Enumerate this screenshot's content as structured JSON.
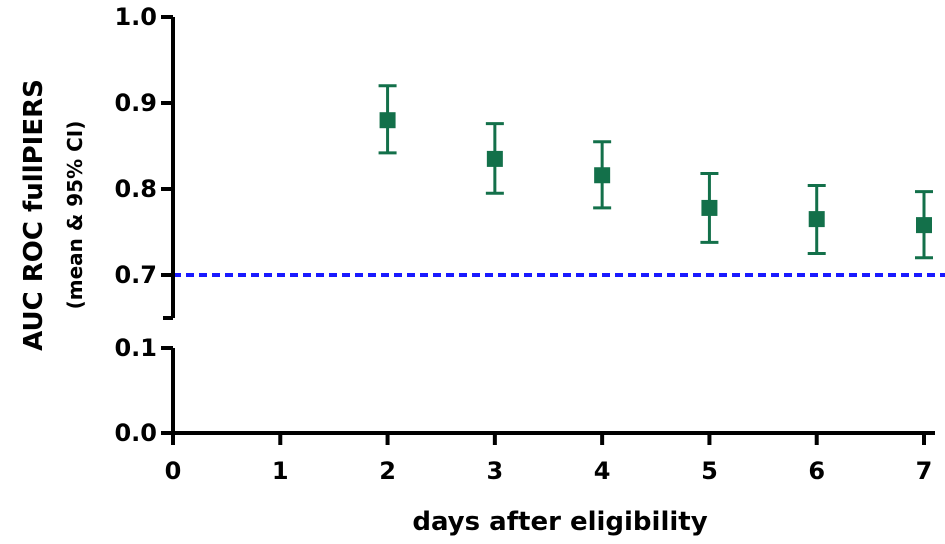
{
  "chart_data": {
    "type": "scatter",
    "xlabel": "days after eligibility",
    "ylabel": "AUC ROC fullPIERS",
    "ylabel_sub": "(mean & 95% CI)",
    "x_ticks": [
      "0",
      "1",
      "2",
      "3",
      "4",
      "5",
      "6",
      "7"
    ],
    "y_ticks_lower": [
      "0.0",
      "0.1"
    ],
    "y_ticks_upper": [
      "0.7",
      "0.8",
      "0.9",
      "1.0"
    ],
    "xlim": [
      0,
      7
    ],
    "ylim_lower": [
      0.0,
      0.1
    ],
    "ylim_upper": [
      0.7,
      1.0
    ],
    "axis_break": true,
    "reference_line": {
      "y": 0.7,
      "color": "#1a1aff",
      "style": "dashed"
    },
    "marker_color": "#13704a",
    "points": [
      {
        "x": 2,
        "y": 0.88,
        "lo": 0.842,
        "hi": 0.92
      },
      {
        "x": 3,
        "y": 0.835,
        "lo": 0.795,
        "hi": 0.876
      },
      {
        "x": 4,
        "y": 0.816,
        "lo": 0.778,
        "hi": 0.855
      },
      {
        "x": 5,
        "y": 0.778,
        "lo": 0.738,
        "hi": 0.818
      },
      {
        "x": 6,
        "y": 0.765,
        "lo": 0.725,
        "hi": 0.804
      },
      {
        "x": 7,
        "y": 0.758,
        "lo": 0.72,
        "hi": 0.797
      }
    ]
  }
}
